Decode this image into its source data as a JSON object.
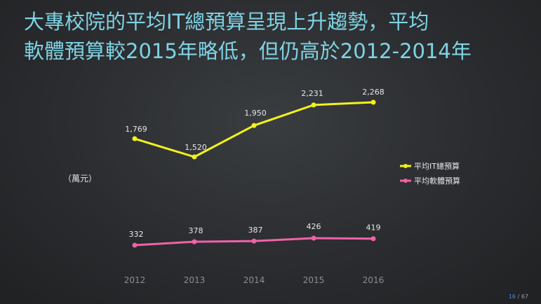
{
  "title": {
    "line1": "大專校院的平均IT總預算呈現上升趨勢，平均",
    "line2": "軟體預算較2015年略低，但仍高於2012-2014年"
  },
  "unit_label": "（萬元）",
  "page": {
    "current": "16",
    "separator": " / ",
    "total": "67"
  },
  "colors": {
    "it_total": "#f2f21c",
    "software": "#f062a8",
    "title": "#7fd3e4",
    "tick_label": "#8a8f94",
    "data_label": "#e6e6e6"
  },
  "chart_data": {
    "type": "line",
    "categories": [
      "2012",
      "2013",
      "2014",
      "2015",
      "2016"
    ],
    "series": [
      {
        "name": "平均IT總預算",
        "values": [
          1769,
          1520,
          1950,
          2231,
          2268
        ],
        "labels": [
          "1,769",
          "1,520",
          "1,950",
          "2,231",
          "2,268"
        ]
      },
      {
        "name": "平均軟體預算",
        "values": [
          332,
          378,
          387,
          426,
          419
        ],
        "labels": [
          "332",
          "378",
          "387",
          "426",
          "419"
        ]
      }
    ],
    "title": "",
    "xlabel": "",
    "ylabel": "（萬元）",
    "legend": "right",
    "grid": false
  }
}
